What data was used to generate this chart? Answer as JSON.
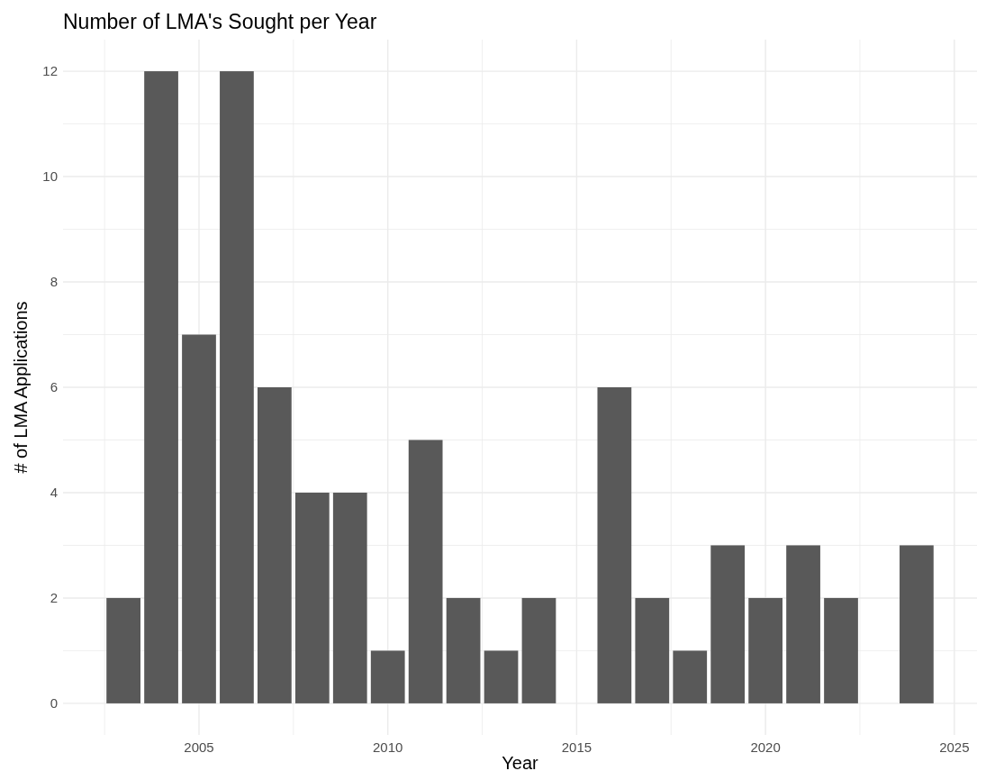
{
  "chart_data": {
    "type": "bar",
    "title": "Number of LMA's Sought per Year",
    "xlabel": "Year",
    "ylabel": "# of LMA Applications",
    "x": [
      2003,
      2004,
      2005,
      2006,
      2007,
      2008,
      2009,
      2010,
      2011,
      2012,
      2013,
      2014,
      2016,
      2017,
      2018,
      2019,
      2020,
      2021,
      2022,
      2024
    ],
    "values": [
      2,
      12,
      7,
      12,
      6,
      4,
      4,
      1,
      5,
      2,
      1,
      2,
      6,
      2,
      1,
      3,
      2,
      3,
      2,
      3
    ],
    "color": "#595959",
    "xlim": [
      2001.4,
      2025.6
    ],
    "xticks": [
      {
        "value": 2002.5,
        "label": null
      },
      2005,
      {
        "value": 2007.5,
        "label": null
      },
      2010,
      {
        "value": 2012.5,
        "label": null
      },
      2015,
      {
        "value": 2017.5,
        "label": null
      },
      2020,
      {
        "value": 2022.5,
        "label": null
      },
      2025
    ],
    "ylim": [
      -0.6,
      12.6
    ],
    "yticks": [
      0,
      {
        "value": 1,
        "label": null
      },
      2,
      {
        "value": 3,
        "label": null
      },
      4,
      {
        "value": 5,
        "label": null
      },
      6,
      {
        "value": 7,
        "label": null
      },
      8,
      {
        "value": 9,
        "label": null
      },
      10,
      {
        "value": 11,
        "label": null
      },
      12
    ],
    "grid": true
  }
}
